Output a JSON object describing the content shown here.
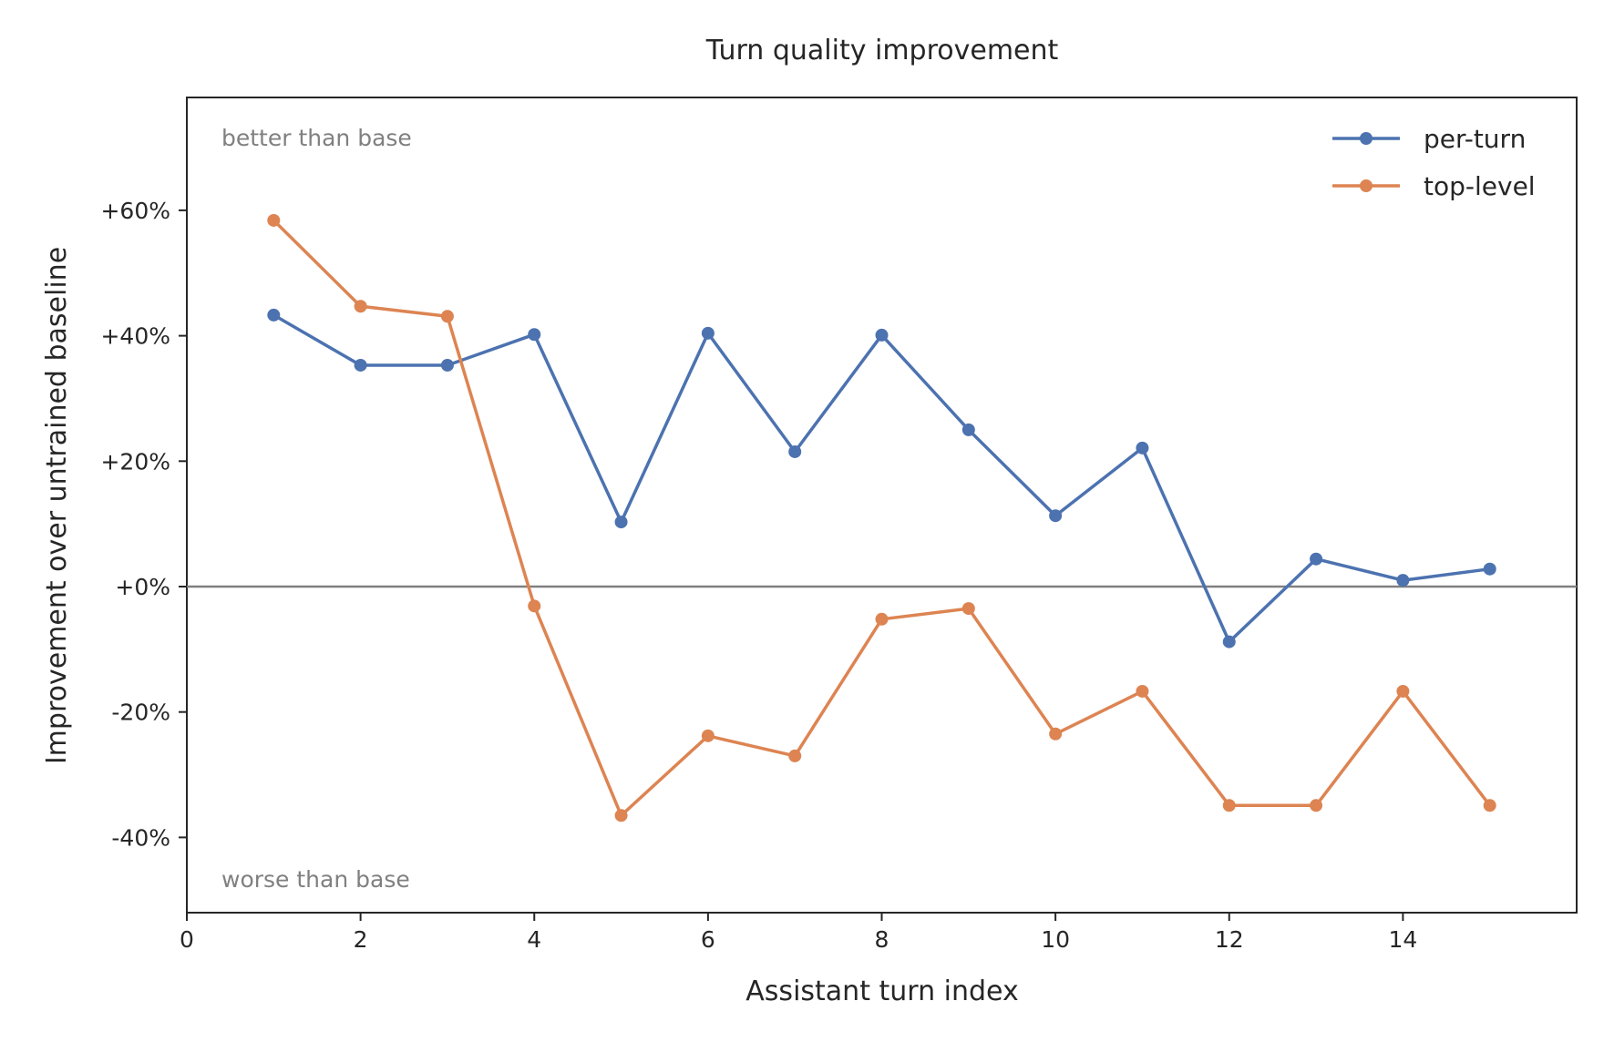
{
  "chart_data": {
    "type": "line",
    "title": "Turn quality improvement",
    "xlabel": "Assistant turn index",
    "ylabel": "Improvement over untrained baseline",
    "xlim": [
      0,
      16
    ],
    "ylim": [
      -52,
      78
    ],
    "x_ticks": [
      0,
      2,
      4,
      6,
      8,
      10,
      12,
      14
    ],
    "y_ticks": [
      -40,
      -20,
      0,
      20,
      40,
      60
    ],
    "y_tick_labels": [
      "-40%",
      "-20%",
      "+0%",
      "+20%",
      "+40%",
      "+60%"
    ],
    "reference_line": 0,
    "grid": false,
    "legend_position": "top-right",
    "annotations": {
      "top": "better than base",
      "bottom": "worse than base"
    },
    "x": [
      1,
      2,
      3,
      4,
      5,
      6,
      7,
      8,
      9,
      10,
      11,
      12,
      13,
      14,
      15
    ],
    "series": [
      {
        "name": "per-turn",
        "color": "#4c72b0",
        "values": [
          43.3,
          35.3,
          35.3,
          40.2,
          10.3,
          40.4,
          21.5,
          40.1,
          25.0,
          11.3,
          22.1,
          -8.8,
          4.4,
          1.0,
          2.8
        ]
      },
      {
        "name": "top-level",
        "color": "#dd8452",
        "values": [
          58.4,
          44.7,
          43.1,
          -3.1,
          -36.5,
          -23.8,
          -27.0,
          -5.2,
          -3.5,
          -23.5,
          -16.7,
          -34.9,
          -34.9,
          -16.7,
          -34.9
        ]
      }
    ]
  }
}
